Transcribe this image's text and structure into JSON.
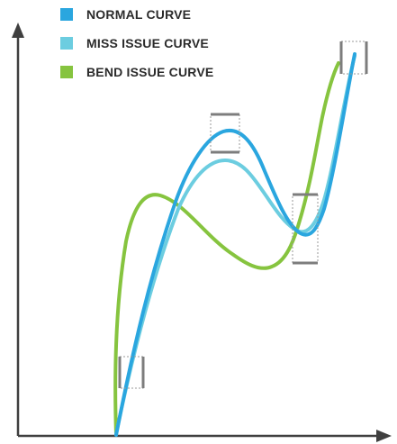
{
  "colors": {
    "normal": "#2aa6df",
    "miss": "#6ccde0",
    "bend": "#86c43f",
    "axis": "#3f3f3f",
    "marker": "#7d7d7d",
    "marker_dotted": "#9a9a9a",
    "background": "#ffffff"
  },
  "legend": [
    {
      "key": "normal",
      "label": "NORMAL CURVE"
    },
    {
      "key": "miss",
      "label": "MISS ISSUE CURVE"
    },
    {
      "key": "bend",
      "label": "BEND ISSUE CURVE"
    }
  ],
  "icons": {
    "x_axis_arrow": "arrow-right-icon",
    "y_axis_arrow": "arrow-up-icon"
  }
}
